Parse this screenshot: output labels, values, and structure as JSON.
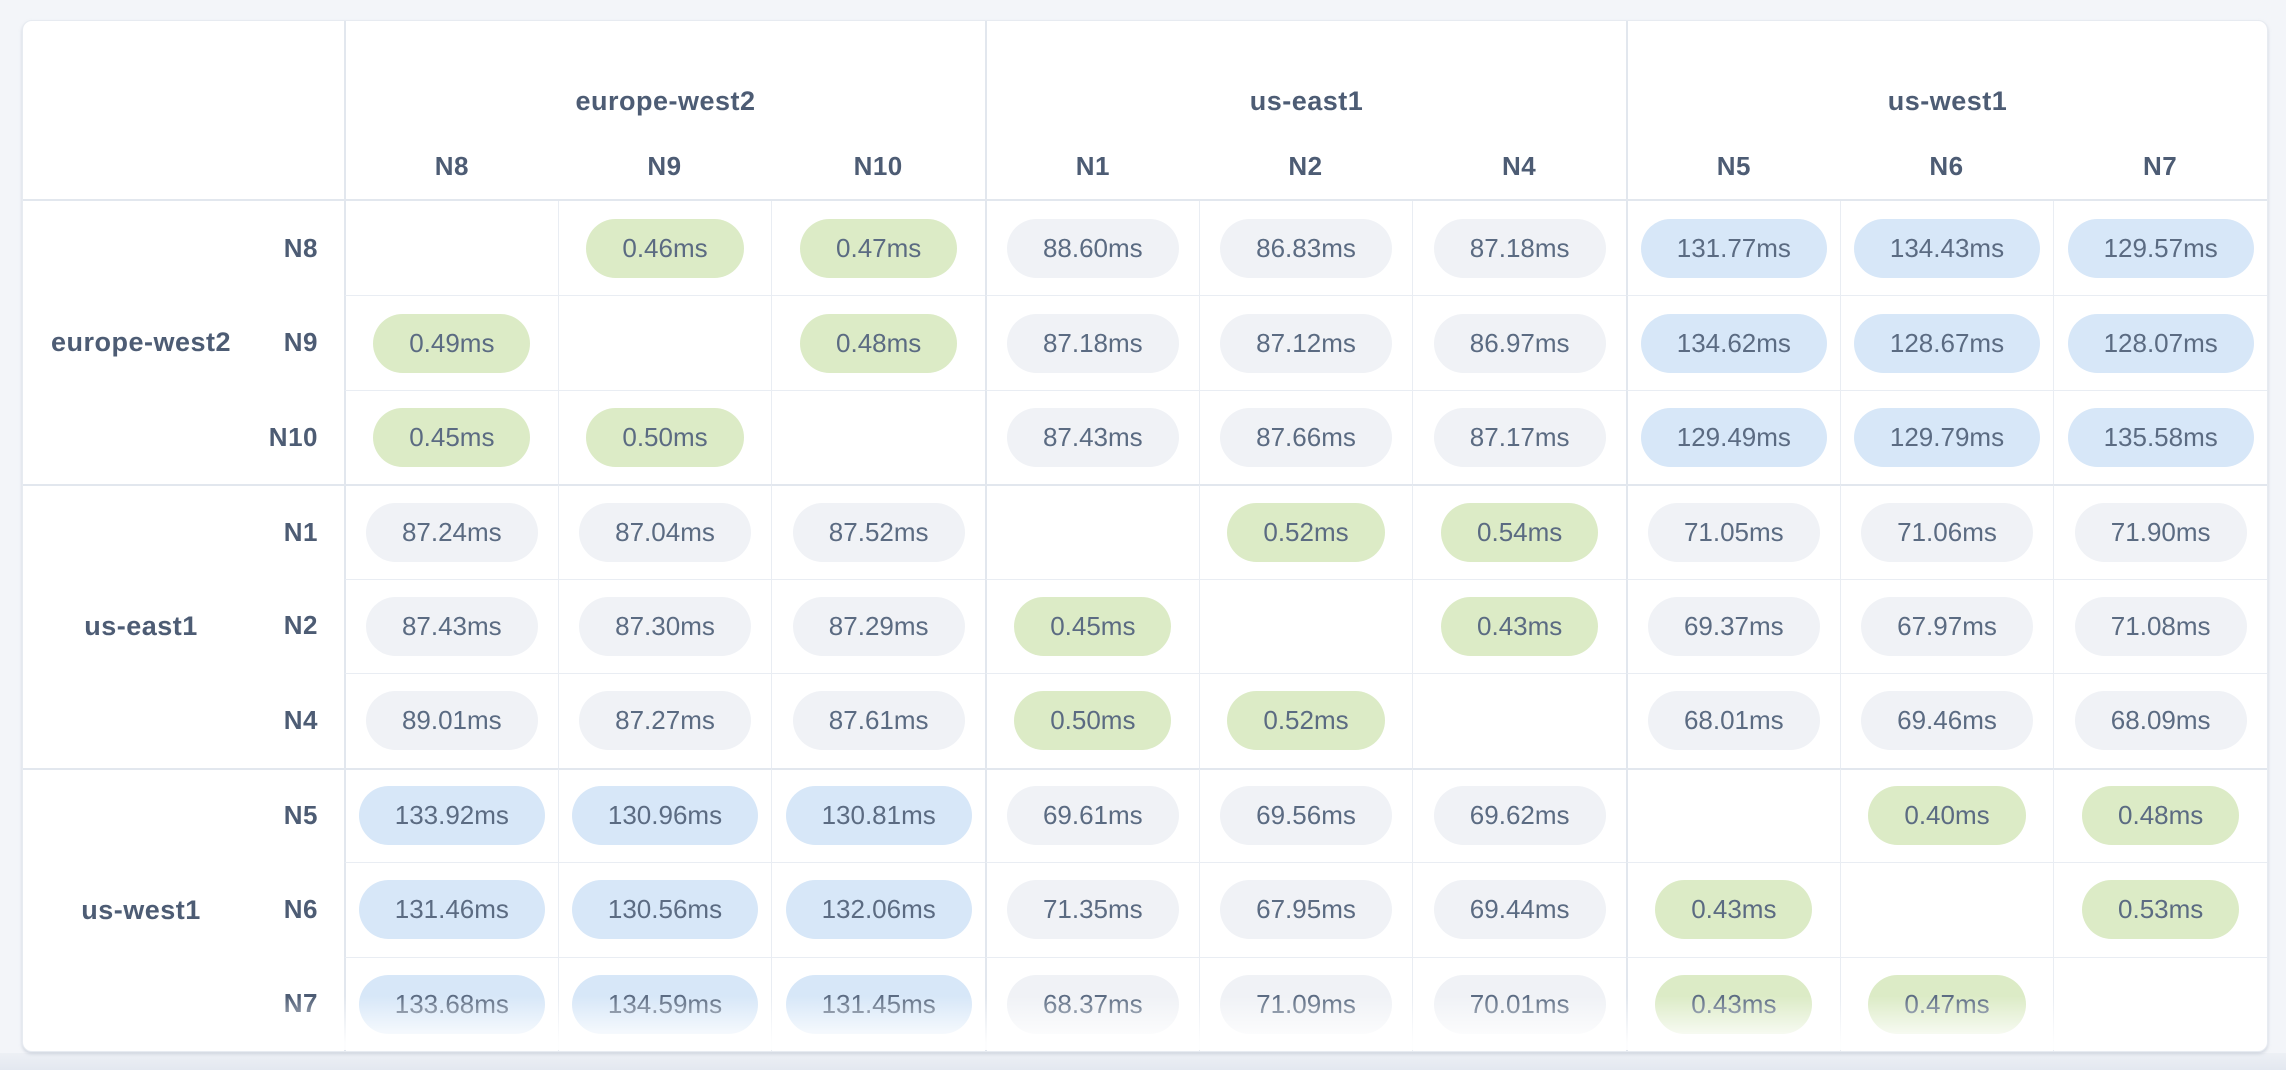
{
  "theme": {
    "page_bg": "#f3f5f9",
    "card_bg": "#ffffff",
    "card_border": "#e7ebf1",
    "grid_line_light": "#e9edf3",
    "grid_line_strong": "#e2e7ee",
    "header_text": "#4d5c74",
    "value_text": "#5b6b82",
    "pill_low_green": "#dcebc6",
    "pill_mid_gray": "#f0f2f6",
    "pill_high_blue": "#d7e7f8"
  },
  "table": {
    "col_groups": [
      {
        "region": "europe-west2",
        "nodes": [
          "N8",
          "N9",
          "N10"
        ]
      },
      {
        "region": "us-east1",
        "nodes": [
          "N1",
          "N2",
          "N4"
        ]
      },
      {
        "region": "us-west1",
        "nodes": [
          "N5",
          "N6",
          "N7"
        ]
      }
    ],
    "row_groups": [
      {
        "region": "europe-west2",
        "nodes": [
          "N8",
          "N9",
          "N10"
        ]
      },
      {
        "region": "us-east1",
        "nodes": [
          "N1",
          "N2",
          "N4"
        ]
      },
      {
        "region": "us-west1",
        "nodes": [
          "N5",
          "N6",
          "N7"
        ]
      }
    ]
  },
  "chart_data": {
    "type": "heatmap",
    "unit": "ms",
    "value_format_decimals": 2,
    "columns": [
      "N8",
      "N9",
      "N10",
      "N1",
      "N2",
      "N4",
      "N5",
      "N6",
      "N7"
    ],
    "rows": [
      "N8",
      "N9",
      "N10",
      "N1",
      "N2",
      "N4",
      "N5",
      "N6",
      "N7"
    ],
    "column_regions": [
      "europe-west2",
      "europe-west2",
      "europe-west2",
      "us-east1",
      "us-east1",
      "us-east1",
      "us-west1",
      "us-west1",
      "us-west1"
    ],
    "row_regions": [
      "europe-west2",
      "europe-west2",
      "europe-west2",
      "us-east1",
      "us-east1",
      "us-east1",
      "us-west1",
      "us-west1",
      "us-west1"
    ],
    "values": [
      [
        null,
        0.46,
        0.47,
        88.6,
        86.83,
        87.18,
        131.77,
        134.43,
        129.57
      ],
      [
        0.49,
        null,
        0.48,
        87.18,
        87.12,
        86.97,
        134.62,
        128.67,
        128.07
      ],
      [
        0.45,
        0.5,
        null,
        87.43,
        87.66,
        87.17,
        129.49,
        129.79,
        135.58
      ],
      [
        87.24,
        87.04,
        87.52,
        null,
        0.52,
        0.54,
        71.05,
        71.06,
        71.9
      ],
      [
        87.43,
        87.3,
        87.29,
        0.45,
        null,
        0.43,
        69.37,
        67.97,
        71.08
      ],
      [
        89.01,
        87.27,
        87.61,
        0.5,
        0.52,
        null,
        68.01,
        69.46,
        68.09
      ],
      [
        133.92,
        130.96,
        130.81,
        69.61,
        69.56,
        69.62,
        null,
        0.4,
        0.48
      ],
      [
        131.46,
        130.56,
        132.06,
        71.35,
        67.95,
        69.44,
        0.43,
        null,
        0.53
      ],
      [
        133.68,
        134.59,
        131.45,
        68.37,
        71.09,
        70.01,
        0.43,
        0.47,
        null
      ]
    ],
    "color_thresholds": {
      "low_below_ms": 1,
      "high_at_or_above_ms": 100
    },
    "diagonal": "blank"
  }
}
